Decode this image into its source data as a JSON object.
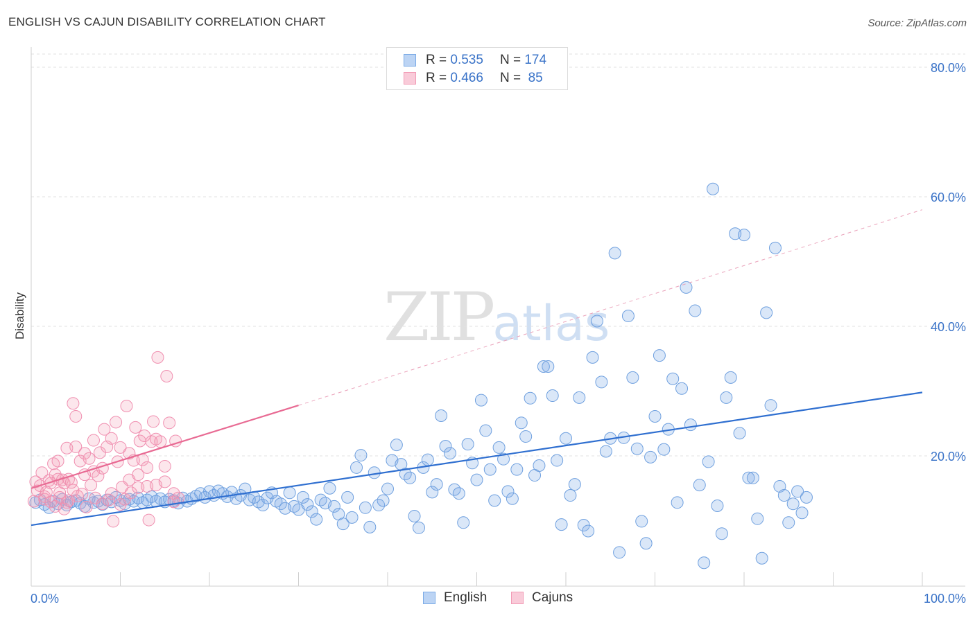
{
  "title": "ENGLISH VS CAJUN DISABILITY CORRELATION CHART",
  "source": "Source: ZipAtlas.com",
  "watermark": {
    "zip": "ZIP",
    "atlas": "atlas"
  },
  "colors": {
    "english": "#7aaae6",
    "english_line": "#2f6fd0",
    "cajun": "#f29ab5",
    "cajun_line": "#e86a93",
    "axis_label": "#3a73c8"
  },
  "legend": {
    "rows": [
      {
        "r_label": "R = ",
        "r_value": "0.535",
        "n_label": "N = ",
        "n_value": "174"
      },
      {
        "r_label": "R = ",
        "r_value": "0.466",
        "n_label": "N = ",
        "n_value": " 85"
      }
    ],
    "placement": "top-center"
  },
  "chart_data": {
    "type": "scatter",
    "title": "ENGLISH VS CAJUN DISABILITY CORRELATION CHART",
    "xlabel": "",
    "ylabel": "Disability",
    "xlim": [
      0,
      100
    ],
    "ylim": [
      0,
      80
    ],
    "x_tick_labels": [
      "0.0%",
      "100.0%"
    ],
    "y_ticks": [
      20,
      40,
      60,
      80
    ],
    "y_tick_labels": [
      "20.0%",
      "40.0%",
      "60.0%",
      "80.0%"
    ],
    "grid": true,
    "series": [
      {
        "name": "English",
        "trend": {
          "x": [
            0,
            100
          ],
          "y": [
            9.3,
            29.8
          ],
          "style": "solid"
        },
        "points": [
          [
            0.5,
            12.8
          ],
          [
            1,
            13.2
          ],
          [
            1.5,
            12.5
          ],
          [
            2,
            12
          ],
          [
            2.5,
            13
          ],
          [
            3,
            12.6
          ],
          [
            3.5,
            13.3
          ],
          [
            4,
            12.4
          ],
          [
            4.5,
            12.9
          ],
          [
            5,
            13.1
          ],
          [
            5.5,
            12.7
          ],
          [
            6,
            12.2
          ],
          [
            6.5,
            13.4
          ],
          [
            7,
            12.8
          ],
          [
            7.5,
            13
          ],
          [
            8,
            12.5
          ],
          [
            8.5,
            13.2
          ],
          [
            9,
            12.9
          ],
          [
            9.5,
            13.6
          ],
          [
            10,
            13.1
          ],
          [
            10.5,
            12.6
          ],
          [
            11,
            13.3
          ],
          [
            11.5,
            13
          ],
          [
            12,
            13.5
          ],
          [
            12.5,
            12.8
          ],
          [
            13,
            13.2
          ],
          [
            13.5,
            13.7
          ],
          [
            14,
            13
          ],
          [
            14.5,
            13.4
          ],
          [
            15,
            12.9
          ],
          [
            15.5,
            13.3
          ],
          [
            16,
            13.1
          ],
          [
            16.5,
            12.7
          ],
          [
            17,
            13.5
          ],
          [
            17.5,
            13
          ],
          [
            18,
            13.4
          ],
          [
            18.5,
            13.8
          ],
          [
            19,
            14.2
          ],
          [
            19.5,
            13.6
          ],
          [
            20,
            14.5
          ],
          [
            20.5,
            13.9
          ],
          [
            21,
            14.6
          ],
          [
            21.5,
            14.2
          ],
          [
            22,
            13.7
          ],
          [
            22.5,
            14.4
          ],
          [
            23,
            13.4
          ],
          [
            23.5,
            13.9
          ],
          [
            24,
            14.9
          ],
          [
            24.5,
            13.2
          ],
          [
            25,
            13.6
          ],
          [
            25.5,
            12.9
          ],
          [
            26,
            12.4
          ],
          [
            26.5,
            13.5
          ],
          [
            27,
            14.3
          ],
          [
            27.5,
            13
          ],
          [
            28,
            12.6
          ],
          [
            28.5,
            11.9
          ],
          [
            29,
            14.3
          ],
          [
            29.5,
            12.2
          ],
          [
            30,
            11.7
          ],
          [
            30.5,
            13.6
          ],
          [
            31,
            12.5
          ],
          [
            31.5,
            11.4
          ],
          [
            32,
            10.2
          ],
          [
            32.5,
            13.2
          ],
          [
            33,
            12.7
          ],
          [
            33.5,
            15
          ],
          [
            34,
            12.2
          ],
          [
            34.5,
            11
          ],
          [
            35,
            9.5
          ],
          [
            35.5,
            13.6
          ],
          [
            36,
            10.5
          ],
          [
            36.5,
            18.2
          ],
          [
            37,
            20.1
          ],
          [
            37.5,
            12
          ],
          [
            38,
            9
          ],
          [
            38.5,
            17.4
          ],
          [
            39,
            12.4
          ],
          [
            39.5,
            13.1
          ],
          [
            40,
            14.9
          ],
          [
            40.5,
            19.3
          ],
          [
            41,
            21.7
          ],
          [
            41.5,
            18.7
          ],
          [
            42,
            17.2
          ],
          [
            42.5,
            16.6
          ],
          [
            43,
            10.7
          ],
          [
            43.5,
            8.9
          ],
          [
            44,
            18.2
          ],
          [
            44.5,
            19.4
          ],
          [
            45,
            14.4
          ],
          [
            45.5,
            15.6
          ],
          [
            46,
            26.2
          ],
          [
            46.5,
            21.5
          ],
          [
            47,
            20.4
          ],
          [
            47.5,
            14.8
          ],
          [
            48,
            14.2
          ],
          [
            48.5,
            9.7
          ],
          [
            49,
            21.8
          ],
          [
            49.5,
            18.9
          ],
          [
            50,
            16.3
          ],
          [
            50.5,
            28.6
          ],
          [
            51,
            23.9
          ],
          [
            51.5,
            17.9
          ],
          [
            52,
            13.1
          ],
          [
            52.5,
            21.3
          ],
          [
            53,
            19.5
          ],
          [
            53.5,
            14.5
          ],
          [
            54,
            13.4
          ],
          [
            54.5,
            17.9
          ],
          [
            55,
            25.1
          ],
          [
            55.5,
            23
          ],
          [
            56,
            28.9
          ],
          [
            56.5,
            17
          ],
          [
            57,
            18.5
          ],
          [
            57.5,
            33.8
          ],
          [
            58,
            33.8
          ],
          [
            58.5,
            29.3
          ],
          [
            59,
            19.3
          ],
          [
            59.5,
            9.4
          ],
          [
            60,
            22.7
          ],
          [
            60.5,
            13.9
          ],
          [
            61,
            15.6
          ],
          [
            61.5,
            29
          ],
          [
            62,
            9.3
          ],
          [
            62.5,
            8.4
          ],
          [
            63,
            35.2
          ],
          [
            63.5,
            40.8
          ],
          [
            64,
            31.4
          ],
          [
            64.5,
            20.7
          ],
          [
            65,
            22.7
          ],
          [
            65.5,
            51.3
          ],
          [
            66,
            5.1
          ],
          [
            66.5,
            22.8
          ],
          [
            67,
            41.6
          ],
          [
            67.5,
            32.1
          ],
          [
            68,
            21.1
          ],
          [
            68.5,
            9.9
          ],
          [
            69,
            6.5
          ],
          [
            69.5,
            19.8
          ],
          [
            70,
            26.1
          ],
          [
            70.5,
            35.5
          ],
          [
            71,
            21
          ],
          [
            71.5,
            24.1
          ],
          [
            72,
            31.9
          ],
          [
            72.5,
            12.8
          ],
          [
            73,
            30.4
          ],
          [
            73.5,
            46
          ],
          [
            74,
            24.8
          ],
          [
            74.5,
            42.4
          ],
          [
            75,
            15.5
          ],
          [
            75.5,
            3.5
          ],
          [
            76,
            19.1
          ],
          [
            76.5,
            61.2
          ],
          [
            77,
            12.3
          ],
          [
            77.5,
            8
          ],
          [
            78,
            29
          ],
          [
            78.5,
            32.1
          ],
          [
            79,
            54.3
          ],
          [
            79.5,
            23.5
          ],
          [
            80,
            54.1
          ],
          [
            80.5,
            16.6
          ],
          [
            81,
            16.6
          ],
          [
            81.5,
            10.3
          ],
          [
            82,
            4.2
          ],
          [
            82.5,
            42.1
          ],
          [
            83,
            27.8
          ],
          [
            83.5,
            52.1
          ],
          [
            84,
            15.3
          ],
          [
            84.5,
            13.9
          ],
          [
            85,
            9.7
          ],
          [
            85.5,
            12.6
          ],
          [
            86,
            14.5
          ],
          [
            86.5,
            11.2
          ],
          [
            87,
            13.6
          ]
        ]
      },
      {
        "name": "Cajuns",
        "trend": {
          "x": [
            0,
            30,
            100
          ],
          "y": [
            15,
            27.8,
            58
          ],
          "style": "solid-then-dashed"
        },
        "points": [
          [
            0.3,
            13
          ],
          [
            0.5,
            16
          ],
          [
            0.7,
            14.6
          ],
          [
            1,
            15.4
          ],
          [
            1.2,
            17.4
          ],
          [
            1.5,
            13.7
          ],
          [
            1.7,
            14.4
          ],
          [
            2,
            16.2
          ],
          [
            2.2,
            15.8
          ],
          [
            2.5,
            18.8
          ],
          [
            2.7,
            17.1
          ],
          [
            3,
            16.4
          ],
          [
            3,
            19.2
          ],
          [
            3.2,
            14.3
          ],
          [
            3.5,
            16.3
          ],
          [
            3.7,
            15.8
          ],
          [
            4,
            12.8
          ],
          [
            4,
            21.2
          ],
          [
            4.2,
            16.4
          ],
          [
            4.5,
            15.9
          ],
          [
            4.7,
            28.1
          ],
          [
            5,
            21.4
          ],
          [
            5,
            26.1
          ],
          [
            5.2,
            13.8
          ],
          [
            5.5,
            19.2
          ],
          [
            5.7,
            14.1
          ],
          [
            6,
            20.4
          ],
          [
            6,
            17.1
          ],
          [
            6.2,
            12.1
          ],
          [
            6.5,
            19.6
          ],
          [
            6.7,
            15.5
          ],
          [
            7,
            22.4
          ],
          [
            7,
            17.6
          ],
          [
            7.2,
            13.5
          ],
          [
            7.5,
            16.9
          ],
          [
            7.7,
            20.5
          ],
          [
            8,
            18.1
          ],
          [
            8,
            12.6
          ],
          [
            8.2,
            24.1
          ],
          [
            8.5,
            21.4
          ],
          [
            8.7,
            13.2
          ],
          [
            9,
            14.2
          ],
          [
            9,
            22.7
          ],
          [
            9.2,
            9.9
          ],
          [
            9.5,
            25.2
          ],
          [
            9.7,
            19.1
          ],
          [
            10,
            12.5
          ],
          [
            10,
            21.3
          ],
          [
            10.2,
            15.2
          ],
          [
            10.5,
            13.3
          ],
          [
            10.7,
            27.7
          ],
          [
            11,
            20.4
          ],
          [
            11,
            16.3
          ],
          [
            11.2,
            14.3
          ],
          [
            11.5,
            19.3
          ],
          [
            11.7,
            24.4
          ],
          [
            12,
            15.1
          ],
          [
            12,
            17.1
          ],
          [
            12.2,
            22.3
          ],
          [
            12.5,
            19.4
          ],
          [
            12.7,
            23.1
          ],
          [
            13,
            18.2
          ],
          [
            13,
            15.3
          ],
          [
            13.2,
            10.1
          ],
          [
            13.5,
            22.2
          ],
          [
            13.7,
            25.3
          ],
          [
            14,
            15.5
          ],
          [
            14,
            22.6
          ],
          [
            14.2,
            35.2
          ],
          [
            14.5,
            22.2
          ],
          [
            15,
            18.4
          ],
          [
            15,
            16
          ],
          [
            15.2,
            32.3
          ],
          [
            15.5,
            25.1
          ],
          [
            16,
            14.2
          ],
          [
            16,
            12.9
          ],
          [
            16.2,
            22.3
          ],
          [
            16.5,
            13.5
          ],
          [
            1.5,
            13.3
          ],
          [
            2.2,
            12.9
          ],
          [
            2.7,
            12.2
          ],
          [
            3.2,
            13.6
          ],
          [
            3.7,
            11.8
          ],
          [
            4.2,
            13.1
          ],
          [
            4.7,
            14.7
          ]
        ]
      }
    ]
  },
  "bottom_legend": [
    "English",
    "Cajuns"
  ]
}
